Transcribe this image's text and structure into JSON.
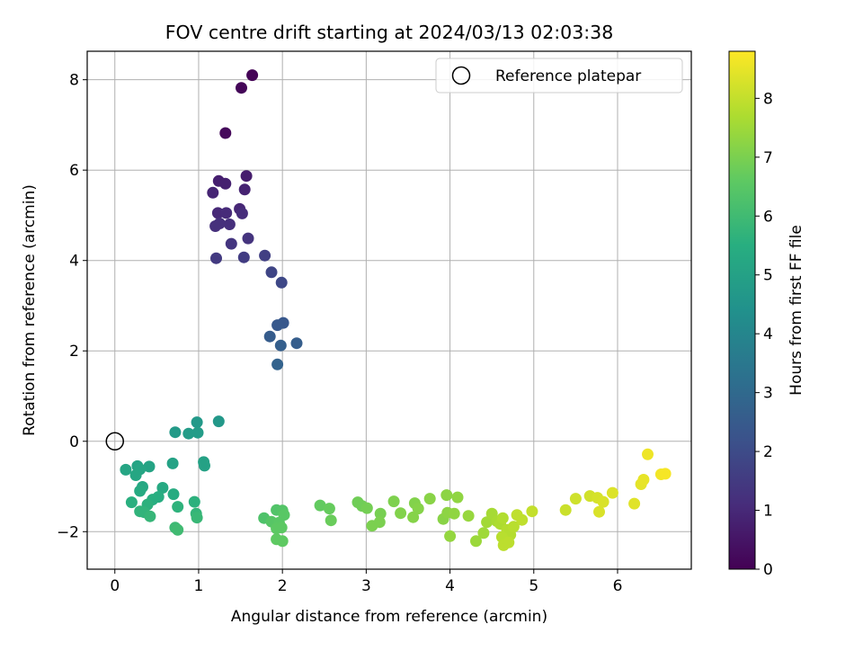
{
  "chart_data": {
    "type": "scatter",
    "title": "FOV centre drift starting at 2024/03/13 02:03:38",
    "xlabel": "Angular distance from reference (arcmin)",
    "ylabel": "Rotation from reference (arcmin)",
    "colorbar_label": "Hours from first FF file",
    "xlim": [
      -0.33,
      6.88
    ],
    "ylim": [
      -2.83,
      8.63
    ],
    "clim": [
      0,
      8.8
    ],
    "x_ticks": [
      0,
      1,
      2,
      3,
      4,
      5,
      6
    ],
    "y_ticks": [
      -2,
      0,
      2,
      4,
      6,
      8
    ],
    "colorbar_ticks": [
      0,
      1,
      2,
      3,
      4,
      5,
      6,
      7,
      8
    ],
    "grid": true,
    "legend_position": "top-right",
    "reference": {
      "label": "Reference platepar",
      "x": 0,
      "y": 0
    },
    "points": [
      {
        "x": 1.64,
        "y": 8.1,
        "t": 0.05
      },
      {
        "x": 1.51,
        "y": 7.82,
        "t": 0.12
      },
      {
        "x": 1.32,
        "y": 6.82,
        "t": 0.2
      },
      {
        "x": 1.57,
        "y": 5.87,
        "t": 0.7
      },
      {
        "x": 1.24,
        "y": 5.76,
        "t": 0.75
      },
      {
        "x": 1.32,
        "y": 5.7,
        "t": 0.8
      },
      {
        "x": 1.55,
        "y": 5.57,
        "t": 0.85
      },
      {
        "x": 1.17,
        "y": 5.5,
        "t": 0.9
      },
      {
        "x": 1.49,
        "y": 5.14,
        "t": 0.95
      },
      {
        "x": 1.23,
        "y": 5.05,
        "t": 1.0
      },
      {
        "x": 1.33,
        "y": 5.05,
        "t": 1.05
      },
      {
        "x": 1.52,
        "y": 5.04,
        "t": 1.1
      },
      {
        "x": 1.37,
        "y": 4.8,
        "t": 1.15
      },
      {
        "x": 1.2,
        "y": 4.76,
        "t": 1.2
      },
      {
        "x": 1.25,
        "y": 4.82,
        "t": 1.2
      },
      {
        "x": 1.59,
        "y": 4.49,
        "t": 1.3
      },
      {
        "x": 1.39,
        "y": 4.37,
        "t": 1.35
      },
      {
        "x": 1.21,
        "y": 4.05,
        "t": 1.5
      },
      {
        "x": 1.54,
        "y": 4.07,
        "t": 1.55
      },
      {
        "x": 1.79,
        "y": 4.11,
        "t": 1.65
      },
      {
        "x": 1.87,
        "y": 3.74,
        "t": 1.8
      },
      {
        "x": 1.99,
        "y": 3.51,
        "t": 1.9
      },
      {
        "x": 2.01,
        "y": 2.62,
        "t": 2.4
      },
      {
        "x": 1.94,
        "y": 2.57,
        "t": 2.45
      },
      {
        "x": 1.85,
        "y": 2.32,
        "t": 2.55
      },
      {
        "x": 2.17,
        "y": 2.17,
        "t": 2.6
      },
      {
        "x": 1.98,
        "y": 2.12,
        "t": 2.65
      },
      {
        "x": 1.94,
        "y": 1.7,
        "t": 2.8
      },
      {
        "x": 1.24,
        "y": 0.44,
        "t": 4.65
      },
      {
        "x": 0.98,
        "y": 0.42,
        "t": 4.7
      },
      {
        "x": 0.72,
        "y": 0.2,
        "t": 4.75
      },
      {
        "x": 0.88,
        "y": 0.17,
        "t": 4.8
      },
      {
        "x": 0.99,
        "y": 0.19,
        "t": 4.8
      },
      {
        "x": 1.06,
        "y": -0.46,
        "t": 5.0
      },
      {
        "x": 1.07,
        "y": -0.54,
        "t": 5.0
      },
      {
        "x": 0.69,
        "y": -0.49,
        "t": 5.05
      },
      {
        "x": 0.27,
        "y": -0.55,
        "t": 5.1
      },
      {
        "x": 0.41,
        "y": -0.56,
        "t": 5.1
      },
      {
        "x": 0.13,
        "y": -0.63,
        "t": 5.15
      },
      {
        "x": 0.3,
        "y": -0.62,
        "t": 5.15
      },
      {
        "x": 0.25,
        "y": -0.75,
        "t": 5.2
      },
      {
        "x": 0.33,
        "y": -1.01,
        "t": 5.25
      },
      {
        "x": 0.57,
        "y": -1.03,
        "t": 5.3
      },
      {
        "x": 0.3,
        "y": -1.1,
        "t": 5.35
      },
      {
        "x": 0.7,
        "y": -1.17,
        "t": 5.4
      },
      {
        "x": 0.52,
        "y": -1.23,
        "t": 5.45
      },
      {
        "x": 0.45,
        "y": -1.29,
        "t": 5.5
      },
      {
        "x": 0.2,
        "y": -1.35,
        "t": 5.55
      },
      {
        "x": 0.95,
        "y": -1.34,
        "t": 5.6
      },
      {
        "x": 0.39,
        "y": -1.4,
        "t": 5.6
      },
      {
        "x": 0.75,
        "y": -1.45,
        "t": 5.65
      },
      {
        "x": 0.3,
        "y": -1.55,
        "t": 5.7
      },
      {
        "x": 0.35,
        "y": -1.57,
        "t": 5.7
      },
      {
        "x": 0.97,
        "y": -1.6,
        "t": 5.75
      },
      {
        "x": 0.42,
        "y": -1.66,
        "t": 5.8
      },
      {
        "x": 0.98,
        "y": -1.69,
        "t": 5.85
      },
      {
        "x": 0.72,
        "y": -1.91,
        "t": 5.95
      },
      {
        "x": 0.75,
        "y": -1.96,
        "t": 6.0
      },
      {
        "x": 1.78,
        "y": -1.7,
        "t": 6.3
      },
      {
        "x": 1.93,
        "y": -1.52,
        "t": 6.35
      },
      {
        "x": 2.0,
        "y": -1.53,
        "t": 6.4
      },
      {
        "x": 1.87,
        "y": -1.78,
        "t": 6.45
      },
      {
        "x": 1.96,
        "y": -1.8,
        "t": 6.5
      },
      {
        "x": 2.02,
        "y": -1.63,
        "t": 6.5
      },
      {
        "x": 1.93,
        "y": -1.93,
        "t": 6.55
      },
      {
        "x": 1.99,
        "y": -1.91,
        "t": 6.55
      },
      {
        "x": 1.93,
        "y": -2.17,
        "t": 6.6
      },
      {
        "x": 2.0,
        "y": -2.21,
        "t": 6.6
      },
      {
        "x": 2.45,
        "y": -1.42,
        "t": 6.65
      },
      {
        "x": 2.56,
        "y": -1.49,
        "t": 6.7
      },
      {
        "x": 2.58,
        "y": -1.75,
        "t": 6.75
      },
      {
        "x": 2.9,
        "y": -1.35,
        "t": 6.85
      },
      {
        "x": 2.95,
        "y": -1.43,
        "t": 6.85
      },
      {
        "x": 3.01,
        "y": -1.48,
        "t": 6.9
      },
      {
        "x": 3.17,
        "y": -1.6,
        "t": 6.95
      },
      {
        "x": 3.07,
        "y": -1.87,
        "t": 7.0
      },
      {
        "x": 3.16,
        "y": -1.79,
        "t": 7.0
      },
      {
        "x": 3.33,
        "y": -1.33,
        "t": 7.05
      },
      {
        "x": 3.41,
        "y": -1.59,
        "t": 7.1
      },
      {
        "x": 3.58,
        "y": -1.37,
        "t": 7.1
      },
      {
        "x": 3.56,
        "y": -1.68,
        "t": 7.15
      },
      {
        "x": 3.62,
        "y": -1.49,
        "t": 7.15
      },
      {
        "x": 3.76,
        "y": -1.27,
        "t": 7.2
      },
      {
        "x": 3.92,
        "y": -1.72,
        "t": 7.2
      },
      {
        "x": 3.96,
        "y": -1.19,
        "t": 7.25
      },
      {
        "x": 3.97,
        "y": -1.58,
        "t": 7.25
      },
      {
        "x": 4.05,
        "y": -1.6,
        "t": 7.3
      },
      {
        "x": 4.09,
        "y": -1.24,
        "t": 7.3
      },
      {
        "x": 4.0,
        "y": -2.1,
        "t": 7.35
      },
      {
        "x": 4.22,
        "y": -1.65,
        "t": 7.4
      },
      {
        "x": 4.31,
        "y": -2.21,
        "t": 7.45
      },
      {
        "x": 4.4,
        "y": -2.03,
        "t": 7.5
      },
      {
        "x": 4.44,
        "y": -1.79,
        "t": 7.55
      },
      {
        "x": 4.5,
        "y": -1.6,
        "t": 7.6
      },
      {
        "x": 4.56,
        "y": -1.77,
        "t": 7.65
      },
      {
        "x": 4.6,
        "y": -1.83,
        "t": 7.7
      },
      {
        "x": 4.63,
        "y": -1.7,
        "t": 7.75
      },
      {
        "x": 4.68,
        "y": -1.96,
        "t": 7.8
      },
      {
        "x": 4.72,
        "y": -2.07,
        "t": 7.8
      },
      {
        "x": 4.76,
        "y": -1.89,
        "t": 7.85
      },
      {
        "x": 4.62,
        "y": -2.12,
        "t": 7.85
      },
      {
        "x": 4.64,
        "y": -2.3,
        "t": 7.9
      },
      {
        "x": 4.7,
        "y": -2.24,
        "t": 7.9
      },
      {
        "x": 4.8,
        "y": -1.63,
        "t": 7.95
      },
      {
        "x": 4.86,
        "y": -1.74,
        "t": 7.95
      },
      {
        "x": 4.98,
        "y": -1.55,
        "t": 8.0
      },
      {
        "x": 5.38,
        "y": -1.52,
        "t": 8.1
      },
      {
        "x": 5.5,
        "y": -1.27,
        "t": 8.15
      },
      {
        "x": 5.67,
        "y": -1.21,
        "t": 8.2
      },
      {
        "x": 5.76,
        "y": -1.25,
        "t": 8.25
      },
      {
        "x": 5.83,
        "y": -1.34,
        "t": 8.3
      },
      {
        "x": 5.78,
        "y": -1.56,
        "t": 8.3
      },
      {
        "x": 5.94,
        "y": -1.14,
        "t": 8.35
      },
      {
        "x": 6.2,
        "y": -1.38,
        "t": 8.4
      },
      {
        "x": 6.28,
        "y": -0.95,
        "t": 8.45
      },
      {
        "x": 6.31,
        "y": -0.85,
        "t": 8.5
      },
      {
        "x": 6.36,
        "y": -0.29,
        "t": 8.6
      },
      {
        "x": 6.52,
        "y": -0.73,
        "t": 8.65
      },
      {
        "x": 6.57,
        "y": -0.72,
        "t": 8.7
      }
    ]
  }
}
